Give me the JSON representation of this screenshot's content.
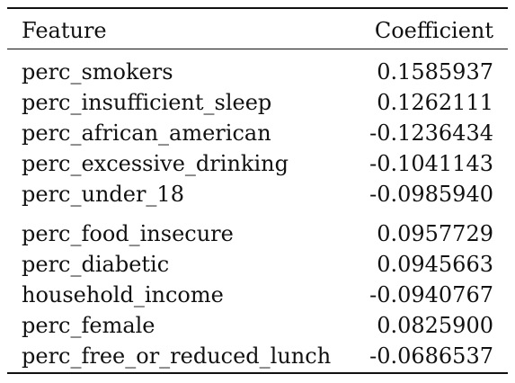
{
  "table": {
    "headers": {
      "feature": "Feature",
      "coefficient": "Coefficient"
    },
    "rows": [
      {
        "feature": "perc_smokers",
        "coefficient": "0.1585937"
      },
      {
        "feature": "perc_insufficient_sleep",
        "coefficient": "0.1262111"
      },
      {
        "feature": "perc_african_american",
        "coefficient": "-0.1236434"
      },
      {
        "feature": "perc_excessive_drinking",
        "coefficient": "-0.1041143"
      },
      {
        "feature": "perc_under_18",
        "coefficient": "-0.0985940"
      },
      {
        "feature": "perc_food_insecure",
        "coefficient": "0.0957729"
      },
      {
        "feature": "perc_diabetic",
        "coefficient": "0.0945663"
      },
      {
        "feature": "household_income",
        "coefficient": "-0.0940767"
      },
      {
        "feature": "perc_female",
        "coefficient": "0.0825900"
      },
      {
        "feature": "perc_free_or_reduced_lunch",
        "coefficient": "-0.0686537"
      }
    ]
  }
}
